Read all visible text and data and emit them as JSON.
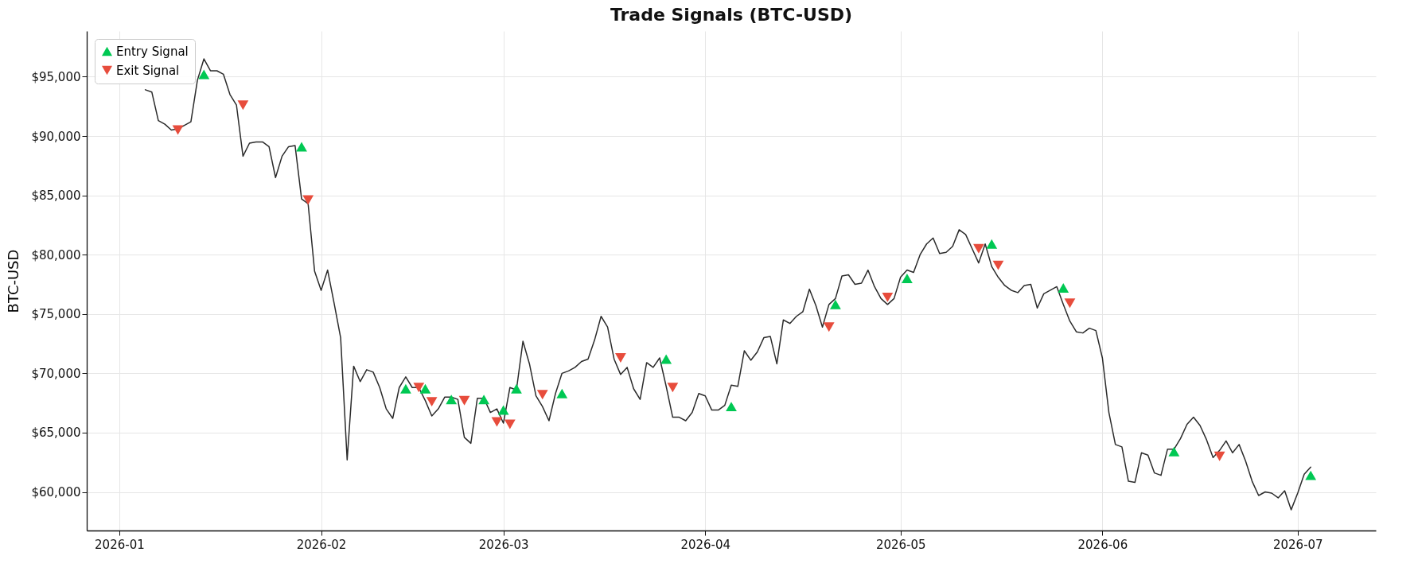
{
  "chart_data": {
    "type": "line",
    "title": "Trade Signals (BTC-USD)",
    "ylabel": "BTC-USD",
    "xlim": [
      "2025-12-27",
      "2026-07-13"
    ],
    "ylim": [
      56750,
      98850
    ],
    "xticks": [
      "2026-01",
      "2026-02",
      "2026-03",
      "2026-04",
      "2026-05",
      "2026-06",
      "2026-07"
    ],
    "yticks": [
      {
        "value": 60000,
        "label": "$60,000"
      },
      {
        "value": 65000,
        "label": "$65,000"
      },
      {
        "value": 70000,
        "label": "$70,000"
      },
      {
        "value": 75000,
        "label": "$75,000"
      },
      {
        "value": 80000,
        "label": "$80,000"
      },
      {
        "value": 85000,
        "label": "$85,000"
      },
      {
        "value": 90000,
        "label": "$90,000"
      },
      {
        "value": 95000,
        "label": "$95,000"
      }
    ],
    "grid": true,
    "legend": "top left",
    "series": [
      {
        "type": "line",
        "color": "#2b2b2b",
        "marker": "none",
        "x": [
          "2026-01-05",
          "2026-01-06",
          "2026-01-07",
          "2026-01-08",
          "2026-01-09",
          "2026-01-10",
          "2026-01-11",
          "2026-01-12",
          "2026-01-13",
          "2026-01-14",
          "2026-01-15",
          "2026-01-16",
          "2026-01-17",
          "2026-01-18",
          "2026-01-19",
          "2026-01-20",
          "2026-01-21",
          "2026-01-22",
          "2026-01-23",
          "2026-01-24",
          "2026-01-25",
          "2026-01-26",
          "2026-01-27",
          "2026-01-28",
          "2026-01-29",
          "2026-01-30",
          "2026-01-31",
          "2026-02-01",
          "2026-02-02",
          "2026-02-03",
          "2026-02-04",
          "2026-02-05",
          "2026-02-06",
          "2026-02-07",
          "2026-02-08",
          "2026-02-09",
          "2026-02-10",
          "2026-02-11",
          "2026-02-12",
          "2026-02-13",
          "2026-02-14",
          "2026-02-15",
          "2026-02-16",
          "2026-02-17",
          "2026-02-18",
          "2026-02-19",
          "2026-02-20",
          "2026-02-21",
          "2026-02-22",
          "2026-02-23",
          "2026-02-24",
          "2026-02-25",
          "2026-02-26",
          "2026-02-27",
          "2026-02-28",
          "2026-03-01",
          "2026-03-02",
          "2026-03-03",
          "2026-03-04",
          "2026-03-05",
          "2026-03-06",
          "2026-03-07",
          "2026-03-08",
          "2026-03-09",
          "2026-03-10",
          "2026-03-11",
          "2026-03-12",
          "2026-03-13",
          "2026-03-14",
          "2026-03-15",
          "2026-03-16",
          "2026-03-17",
          "2026-03-18",
          "2026-03-19",
          "2026-03-20",
          "2026-03-21",
          "2026-03-22",
          "2026-03-23",
          "2026-03-24",
          "2026-03-25",
          "2026-03-26",
          "2026-03-27",
          "2026-03-28",
          "2026-03-29",
          "2026-03-30",
          "2026-03-31",
          "2026-04-01",
          "2026-04-02",
          "2026-04-03",
          "2026-04-04",
          "2026-04-05",
          "2026-04-06",
          "2026-04-07",
          "2026-04-08",
          "2026-04-09",
          "2026-04-10",
          "2026-04-11",
          "2026-04-12",
          "2026-04-13",
          "2026-04-14",
          "2026-04-15",
          "2026-04-16",
          "2026-04-17",
          "2026-04-18",
          "2026-04-19",
          "2026-04-20",
          "2026-04-21",
          "2026-04-22",
          "2026-04-23",
          "2026-04-24",
          "2026-04-25",
          "2026-04-26",
          "2026-04-27",
          "2026-04-28",
          "2026-04-29",
          "2026-04-30",
          "2026-05-01",
          "2026-05-02",
          "2026-05-03",
          "2026-05-04",
          "2026-05-05",
          "2026-05-06",
          "2026-05-07",
          "2026-05-08",
          "2026-05-09",
          "2026-05-10",
          "2026-05-11",
          "2026-05-12",
          "2026-05-13",
          "2026-05-14",
          "2026-05-15",
          "2026-05-16",
          "2026-05-17",
          "2026-05-18",
          "2026-05-19",
          "2026-05-20",
          "2026-05-21",
          "2026-05-22",
          "2026-05-23",
          "2026-05-24",
          "2026-05-25",
          "2026-05-26",
          "2026-05-27",
          "2026-05-28",
          "2026-05-29",
          "2026-05-30",
          "2026-05-31",
          "2026-06-01",
          "2026-06-02",
          "2026-06-03",
          "2026-06-04",
          "2026-06-05",
          "2026-06-06",
          "2026-06-07",
          "2026-06-08",
          "2026-06-09",
          "2026-06-10",
          "2026-06-11",
          "2026-06-12",
          "2026-06-13",
          "2026-06-14",
          "2026-06-15",
          "2026-06-16",
          "2026-06-17",
          "2026-06-18",
          "2026-06-19",
          "2026-06-20",
          "2026-06-21",
          "2026-06-22",
          "2026-06-23",
          "2026-06-24",
          "2026-06-25",
          "2026-06-26",
          "2026-06-27",
          "2026-06-28",
          "2026-06-29",
          "2026-06-30",
          "2026-07-01",
          "2026-07-02",
          "2026-07-03"
        ],
        "values": [
          93900,
          93700,
          91300,
          91000,
          90500,
          90600,
          90900,
          91200,
          94700,
          96500,
          95500,
          95500,
          95200,
          93500,
          92600,
          88300,
          89400,
          89500,
          89500,
          89100,
          86500,
          88300,
          89100,
          89200,
          84700,
          84300,
          78600,
          77000,
          78700,
          75900,
          73000,
          62700,
          70600,
          69300,
          70300,
          70100,
          68800,
          67000,
          66200,
          68800,
          69700,
          68800,
          68800,
          67700,
          66400,
          67000,
          68000,
          68000,
          67800,
          64600,
          64100,
          67900,
          67900,
          66700,
          67000,
          65800,
          68800,
          68600,
          72700,
          70800,
          68100,
          67200,
          66000,
          68300,
          70000,
          70200,
          70500,
          71000,
          71200,
          72800,
          74800,
          73900,
          71200,
          69900,
          70500,
          68700,
          67800,
          70900,
          70500,
          71300,
          68900,
          66300,
          66300,
          66000,
          66700,
          68300,
          68100,
          66900,
          66900,
          67300,
          69000,
          68900,
          71900,
          71100,
          71800,
          73000,
          73100,
          70800,
          74500,
          74200,
          74800,
          75200,
          77100,
          75700,
          73900,
          75800,
          76300,
          78200,
          78300,
          77500,
          77600,
          78700,
          77300,
          76300,
          75800,
          76300,
          78100,
          78700,
          78500,
          80000,
          80900,
          81400,
          80100,
          80200,
          80700,
          82100,
          81700,
          80500,
          79300,
          80900,
          79000,
          78100,
          77400,
          77000,
          76800,
          77400,
          77500,
          75500,
          76700,
          77000,
          77300,
          75800,
          74400,
          73500,
          73400,
          73800,
          73600,
          71300,
          66700,
          64000,
          63800,
          60900,
          60800,
          63300,
          63100,
          61600,
          61400,
          63600,
          63600,
          64500,
          65700,
          66300,
          65600,
          64400,
          62900,
          63500,
          64300,
          63300,
          64000,
          62600,
          60900,
          59700,
          60000,
          59900,
          59500,
          60100,
          58500,
          59900,
          61500,
          62100
        ]
      },
      {
        "type": "scatter",
        "name": "Entry Signal",
        "color": "#00c853",
        "marker": "triangle",
        "x": [
          "2026-01-14",
          "2026-01-29",
          "2026-02-14",
          "2026-02-17",
          "2026-02-21",
          "2026-02-26",
          "2026-03-01",
          "2026-03-03",
          "2026-03-10",
          "2026-03-26",
          "2026-04-05",
          "2026-04-21",
          "2026-05-02",
          "2026-05-15",
          "2026-05-26",
          "2026-06-12",
          "2026-07-03"
        ],
        "values": [
          95200,
          89100,
          68700,
          68700,
          67800,
          67800,
          66900,
          68700,
          68300,
          71200,
          67200,
          75800,
          78000,
          80900,
          77200,
          63400,
          61400
        ]
      },
      {
        "type": "scatter",
        "name": "Exit Signal",
        "color": "#e74c3c",
        "marker": "triangle-down",
        "x": [
          "2026-01-10",
          "2026-01-20",
          "2026-01-30",
          "2026-02-16",
          "2026-02-18",
          "2026-02-23",
          "2026-02-28",
          "2026-03-02",
          "2026-03-07",
          "2026-03-19",
          "2026-03-27",
          "2026-04-20",
          "2026-04-29",
          "2026-05-13",
          "2026-05-16",
          "2026-05-27",
          "2026-06-19"
        ],
        "values": [
          90500,
          92600,
          84600,
          68800,
          67600,
          67700,
          65900,
          65700,
          68200,
          71300,
          68800,
          73900,
          76400,
          80500,
          79100,
          75900,
          63000
        ]
      }
    ]
  }
}
